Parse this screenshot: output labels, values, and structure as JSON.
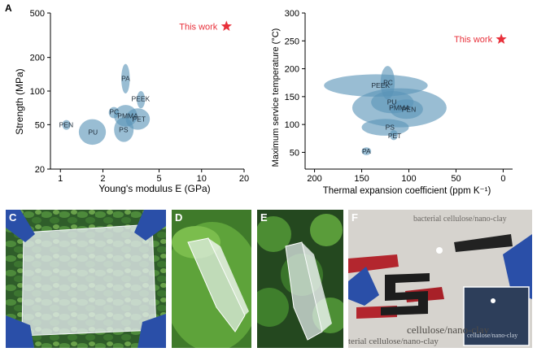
{
  "chart_data": [
    {
      "panel": "A",
      "type": "scatter",
      "xlabel": "Young's modulus E (GPa)",
      "ylabel": "Strength (MPa)",
      "xscale": "log",
      "yscale": "log",
      "xlim": [
        0.85,
        20
      ],
      "ylim": [
        20,
        500
      ],
      "xticks": [
        "1",
        "2",
        "5",
        "10",
        "20"
      ],
      "yticks": [
        "20",
        "50",
        "100",
        "200",
        "500"
      ],
      "regions": [
        {
          "name": "PA",
          "x": 2.9,
          "y": 130,
          "xspan": [
            2.7,
            3.1
          ],
          "yspan": [
            95,
            175
          ]
        },
        {
          "name": "PEEK",
          "x": 3.7,
          "y": 85,
          "xspan": [
            3.5,
            3.95
          ],
          "yspan": [
            70,
            100
          ]
        },
        {
          "name": "PC",
          "x": 2.4,
          "y": 65,
          "xspan": [
            2.2,
            2.6
          ],
          "yspan": [
            57,
            72
          ]
        },
        {
          "name": "PMMA",
          "x": 3.0,
          "y": 60,
          "xspan": [
            2.4,
            3.5
          ],
          "yspan": [
            48,
            75
          ]
        },
        {
          "name": "PET",
          "x": 3.6,
          "y": 56,
          "xspan": [
            2.9,
            4.3
          ],
          "yspan": [
            45,
            70
          ]
        },
        {
          "name": "PS",
          "x": 2.8,
          "y": 45,
          "xspan": [
            2.4,
            3.3
          ],
          "yspan": [
            35,
            58
          ]
        },
        {
          "name": "PU",
          "x": 1.7,
          "y": 43,
          "xspan": [
            1.35,
            2.1
          ],
          "yspan": [
            33,
            56
          ]
        },
        {
          "name": "PEN",
          "x": 1.1,
          "y": 50,
          "xspan": [
            1.03,
            1.18
          ],
          "yspan": [
            45,
            55
          ]
        }
      ],
      "highlight": {
        "name": "This work",
        "x": 15,
        "y": 380,
        "color": "#e8303a"
      }
    },
    {
      "panel": "B",
      "type": "scatter",
      "xlabel": "Thermal expansion coefficient  (ppm K⁻¹)",
      "ylabel": "Maximum service temperature (°C)",
      "xlim": [
        210,
        -10
      ],
      "ylim": [
        20,
        300
      ],
      "xreversed": true,
      "xticks": [
        "200",
        "150",
        "100",
        "50",
        "0"
      ],
      "yticks": [
        "50",
        "100",
        "150",
        "200",
        "250",
        "300"
      ],
      "regions": [
        {
          "name": "PEEK",
          "x": 130,
          "y": 170,
          "xspan": [
            80,
            190
          ],
          "yspan": [
            150,
            190
          ]
        },
        {
          "name": "PC",
          "x": 122,
          "y": 175,
          "xspan": [
            115,
            130
          ],
          "yspan": [
            145,
            205
          ]
        },
        {
          "name": "PU",
          "x": 118,
          "y": 140,
          "xspan": [
            95,
            140
          ],
          "yspan": [
            120,
            160
          ]
        },
        {
          "name": "PMMA",
          "x": 110,
          "y": 130,
          "xspan": [
            60,
            160
          ],
          "yspan": [
            95,
            165
          ]
        },
        {
          "name": "PEN",
          "x": 100,
          "y": 127,
          "xspan": [
            85,
            120
          ],
          "yspan": [
            110,
            145
          ]
        },
        {
          "name": "PS",
          "x": 120,
          "y": 95,
          "xspan": [
            100,
            150
          ],
          "yspan": [
            80,
            110
          ]
        },
        {
          "name": "PET",
          "x": 115,
          "y": 80,
          "xspan": [
            112,
            120
          ],
          "yspan": [
            72,
            90
          ]
        },
        {
          "name": "PA",
          "x": 145,
          "y": 52,
          "xspan": [
            140,
            150
          ],
          "yspan": [
            45,
            59
          ]
        }
      ],
      "highlight": {
        "name": "This work",
        "x": 2,
        "y": 253,
        "color": "#e8303a"
      }
    }
  ],
  "colors": {
    "region": "#5b94b8",
    "label": "#1f2d3a",
    "highlight": "#e8303a"
  },
  "photos": [
    {
      "panel": "C",
      "description_icon": "transparent-film-on-leaves"
    },
    {
      "panel": "D",
      "description_icon": "folded-film-on-leaf"
    },
    {
      "panel": "E",
      "description_icon": "folded-film-on-clover"
    },
    {
      "panel": "F",
      "description_icon": "circuit-led-with-film"
    }
  ],
  "photo_text": {
    "bg1": "bacterial cellulose/nano-clay",
    "bg2": "cellulose/nano-clay",
    "bg3": "terial cellulose/nano-clay",
    "inset": "cellulose/nano-clay"
  }
}
